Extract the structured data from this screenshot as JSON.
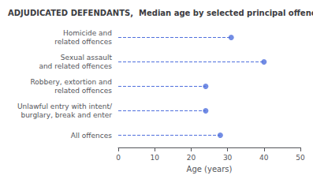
{
  "chart_data": {
    "type": "dot",
    "title": "ADJUDICATED DEFENDANTS,  Median age by selected principal offence",
    "categories": [
      "Homicide and\nrelated offences",
      "Sexual assault\nand related offences",
      "Robbery, extortion and\nrelated offences",
      "Unlawful entry with intent/\nburglary, break and enter",
      "All offences"
    ],
    "values": [
      31,
      40,
      24,
      24,
      28
    ],
    "orientation": "horizontal",
    "line_style": "dashed",
    "xlabel": "Age (years)",
    "xlim": [
      0,
      50
    ],
    "xticks": [
      0,
      10,
      20,
      30,
      40,
      50
    ],
    "grid": false
  }
}
